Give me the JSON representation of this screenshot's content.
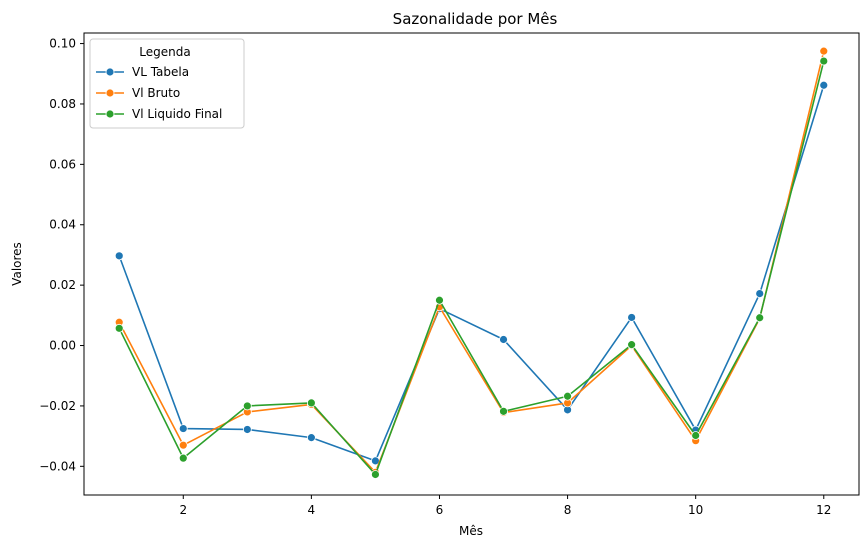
{
  "chart_data": {
    "type": "line",
    "title": "Sazonalidade por Mês",
    "xlabel": "Mês",
    "ylabel": "Valores",
    "xlim": [
      0.45,
      12.55
    ],
    "ylim": [
      -0.0495,
      0.1035
    ],
    "xticks": [
      2,
      4,
      6,
      8,
      10,
      12
    ],
    "yticks": [
      -0.04,
      -0.02,
      0.0,
      0.02,
      0.04,
      0.06,
      0.08,
      0.1
    ],
    "ytick_labels": [
      "−0.04",
      "−0.02",
      "0.00",
      "0.02",
      "0.04",
      "0.06",
      "0.08",
      "0.10"
    ],
    "grid": false,
    "legend": {
      "title": "Legenda",
      "position": "top-left"
    },
    "x": [
      1,
      2,
      3,
      4,
      5,
      6,
      7,
      8,
      9,
      10,
      11,
      12
    ],
    "series": [
      {
        "name": "VL Tabela",
        "color": "#1f77b4",
        "values": [
          0.0297,
          -0.0275,
          -0.0278,
          -0.0305,
          -0.0382,
          0.0122,
          0.002,
          -0.0213,
          0.0093,
          -0.028,
          0.0172,
          0.0862
        ]
      },
      {
        "name": "Vl Bruto",
        "color": "#ff7f0e",
        "values": [
          0.0077,
          -0.033,
          -0.022,
          -0.0195,
          -0.042,
          0.0128,
          -0.0222,
          -0.019,
          0.0,
          -0.0315,
          0.009,
          0.0975
        ]
      },
      {
        "name": "Vl Liquido Final",
        "color": "#2ca02c",
        "values": [
          0.0057,
          -0.0373,
          -0.02,
          -0.019,
          -0.0427,
          0.015,
          -0.0218,
          -0.0168,
          0.0003,
          -0.0298,
          0.0092,
          0.0942
        ]
      }
    ]
  }
}
